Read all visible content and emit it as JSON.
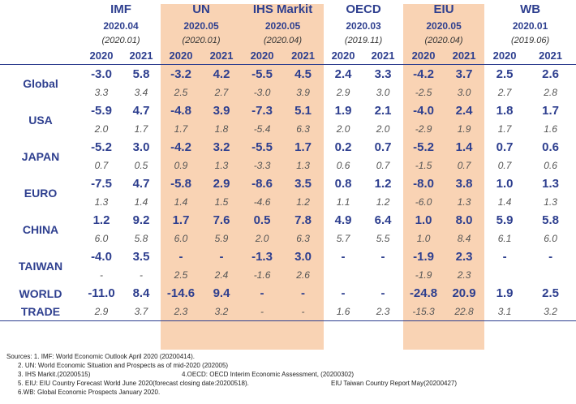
{
  "sources": [
    {
      "name": "IMF",
      "date": "2020.04",
      "orig": "(2020.01)",
      "shaded": false
    },
    {
      "name": "UN",
      "date": "2020.05",
      "orig": "(2020.01)",
      "shaded": true
    },
    {
      "name": "IHS Markit",
      "date": "2020.05",
      "orig": "(2020.04)",
      "shaded": true
    },
    {
      "name": "OECD",
      "date": "2020.03",
      "orig": "(2019.11)",
      "shaded": false
    },
    {
      "name": "EIU",
      "date": "2020.05",
      "orig": "(2020.04)",
      "shaded": true
    },
    {
      "name": "WB",
      "date": "2020.01",
      "orig": "(2019.06)",
      "shaded": false
    }
  ],
  "years": [
    "2020",
    "2021"
  ],
  "shade_color": "#f9d3b4",
  "accent_color": "#2e3f8f",
  "rows": [
    {
      "label": "Global",
      "current": [
        "-3.0",
        "5.8",
        "-3.2",
        "4.2",
        "-5.5",
        "4.5",
        "2.4",
        "3.3",
        "-4.2",
        "3.7",
        "2.5",
        "2.6"
      ],
      "previous": [
        "3.3",
        "3.4",
        "2.5",
        "2.7",
        "-3.0",
        "3.9",
        "2.9",
        "3.0",
        "-2.5",
        "3.0",
        "2.7",
        "2.8"
      ]
    },
    {
      "label": "USA",
      "current": [
        "-5.9",
        "4.7",
        "-4.8",
        "3.9",
        "-7.3",
        "5.1",
        "1.9",
        "2.1",
        "-4.0",
        "2.4",
        "1.8",
        "1.7"
      ],
      "previous": [
        "2.0",
        "1.7",
        "1.7",
        "1.8",
        "-5.4",
        "6.3",
        "2.0",
        "2.0",
        "-2.9",
        "1.9",
        "1.7",
        "1.6"
      ]
    },
    {
      "label": "JAPAN",
      "current": [
        "-5.2",
        "3.0",
        "-4.2",
        "3.2",
        "-5.5",
        "1.7",
        "0.2",
        "0.7",
        "-5.2",
        "1.4",
        "0.7",
        "0.6"
      ],
      "previous": [
        "0.7",
        "0.5",
        "0.9",
        "1.3",
        "-3.3",
        "1.3",
        "0.6",
        "0.7",
        "-1.5",
        "0.7",
        "0.7",
        "0.6"
      ]
    },
    {
      "label": "EURO",
      "current": [
        "-7.5",
        "4.7",
        "-5.8",
        "2.9",
        "-8.6",
        "3.5",
        "0.8",
        "1.2",
        "-8.0",
        "3.8",
        "1.0",
        "1.3"
      ],
      "previous": [
        "1.3",
        "1.4",
        "1.4",
        "1.5",
        "-4.6",
        "1.2",
        "1.1",
        "1.2",
        "-6.0",
        "1.3",
        "1.4",
        "1.3"
      ]
    },
    {
      "label": "CHINA",
      "current": [
        "1.2",
        "9.2",
        "1.7",
        "7.6",
        "0.5",
        "7.8",
        "4.9",
        "6.4",
        "1.0",
        "8.0",
        "5.9",
        "5.8"
      ],
      "previous": [
        "6.0",
        "5.8",
        "6.0",
        "5.9",
        "2.0",
        "6.3",
        "5.7",
        "5.5",
        "1.0",
        "8.4",
        "6.1",
        "6.0"
      ]
    },
    {
      "label": "TAIWAN",
      "current": [
        "-4.0",
        "3.5",
        "-",
        "-",
        "-1.3",
        "3.0",
        "-",
        "-",
        "-1.9",
        "2.3",
        "-",
        "-"
      ],
      "previous": [
        "-",
        "-",
        "2.5",
        "2.4",
        "-1.6",
        "2.6",
        "",
        "",
        "-1.9",
        "2.3",
        "",
        ""
      ]
    }
  ],
  "world_trade": {
    "label_line1": "WORLD",
    "label_line2": "TRADE",
    "current": [
      "-11.0",
      "8.4",
      "-14.6",
      "9.4",
      "-",
      "-",
      "-",
      "-",
      "-24.8",
      "20.9",
      "1.9",
      "2.5"
    ],
    "previous": [
      "2.9",
      "3.7",
      "2.3",
      "3.2",
      "-",
      "-",
      "1.6",
      "2.3",
      "-15.3",
      "22.8",
      "3.1",
      "3.2"
    ]
  },
  "notes": [
    "Sources: 1. IMF: World Economic Outlook April 2020 (20200414).",
    "2. UN: World Economic Situation and Prospects as of mid-2020 (202005)",
    "3. IHS Markit.(20200515)",
    "4.OECD: OECD Interim Economic Assessment, (20200302)",
    "5. EIU: EIU Country Forecast World June 2020(forecast closing date:20200518).",
    "EIU Taiwan Country Report May(20200427)",
    "6.WB: Global Economic Prospects January 2020."
  ]
}
